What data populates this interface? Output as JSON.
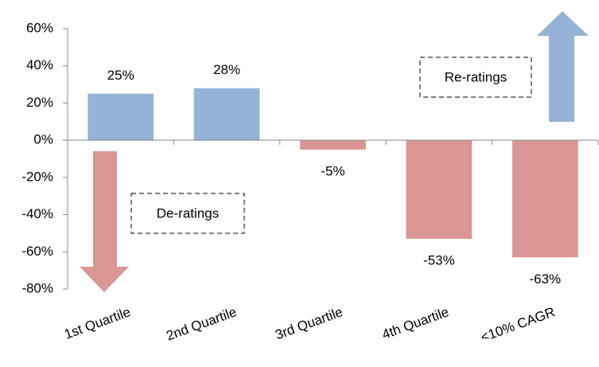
{
  "chart_data": {
    "type": "bar",
    "categories": [
      "1st Quartile",
      "2nd Quartile",
      "3rd Quartile",
      "4th Quartile",
      "<10% CAGR"
    ],
    "values": [
      25,
      28,
      -5,
      -53,
      -63
    ],
    "value_labels": [
      "25%",
      "28%",
      "-5%",
      "-53%",
      "-63%"
    ],
    "colors": [
      "#95b3d7",
      "#95b3d7",
      "#d99694",
      "#d99694",
      "#d99694"
    ],
    "ylim": [
      -80,
      60
    ],
    "yticks": [
      {
        "value": -80,
        "label": "-80%"
      },
      {
        "value": -60,
        "label": "-60%"
      },
      {
        "value": -40,
        "label": "-40%"
      },
      {
        "value": -20,
        "label": "-20%"
      },
      {
        "value": 0,
        "label": "0%"
      },
      {
        "value": 20,
        "label": "20%"
      },
      {
        "value": 40,
        "label": "40%"
      },
      {
        "value": 60,
        "label": "60%"
      }
    ],
    "grid": false,
    "annotations": [
      "Re-ratings",
      "De-ratings"
    ]
  }
}
